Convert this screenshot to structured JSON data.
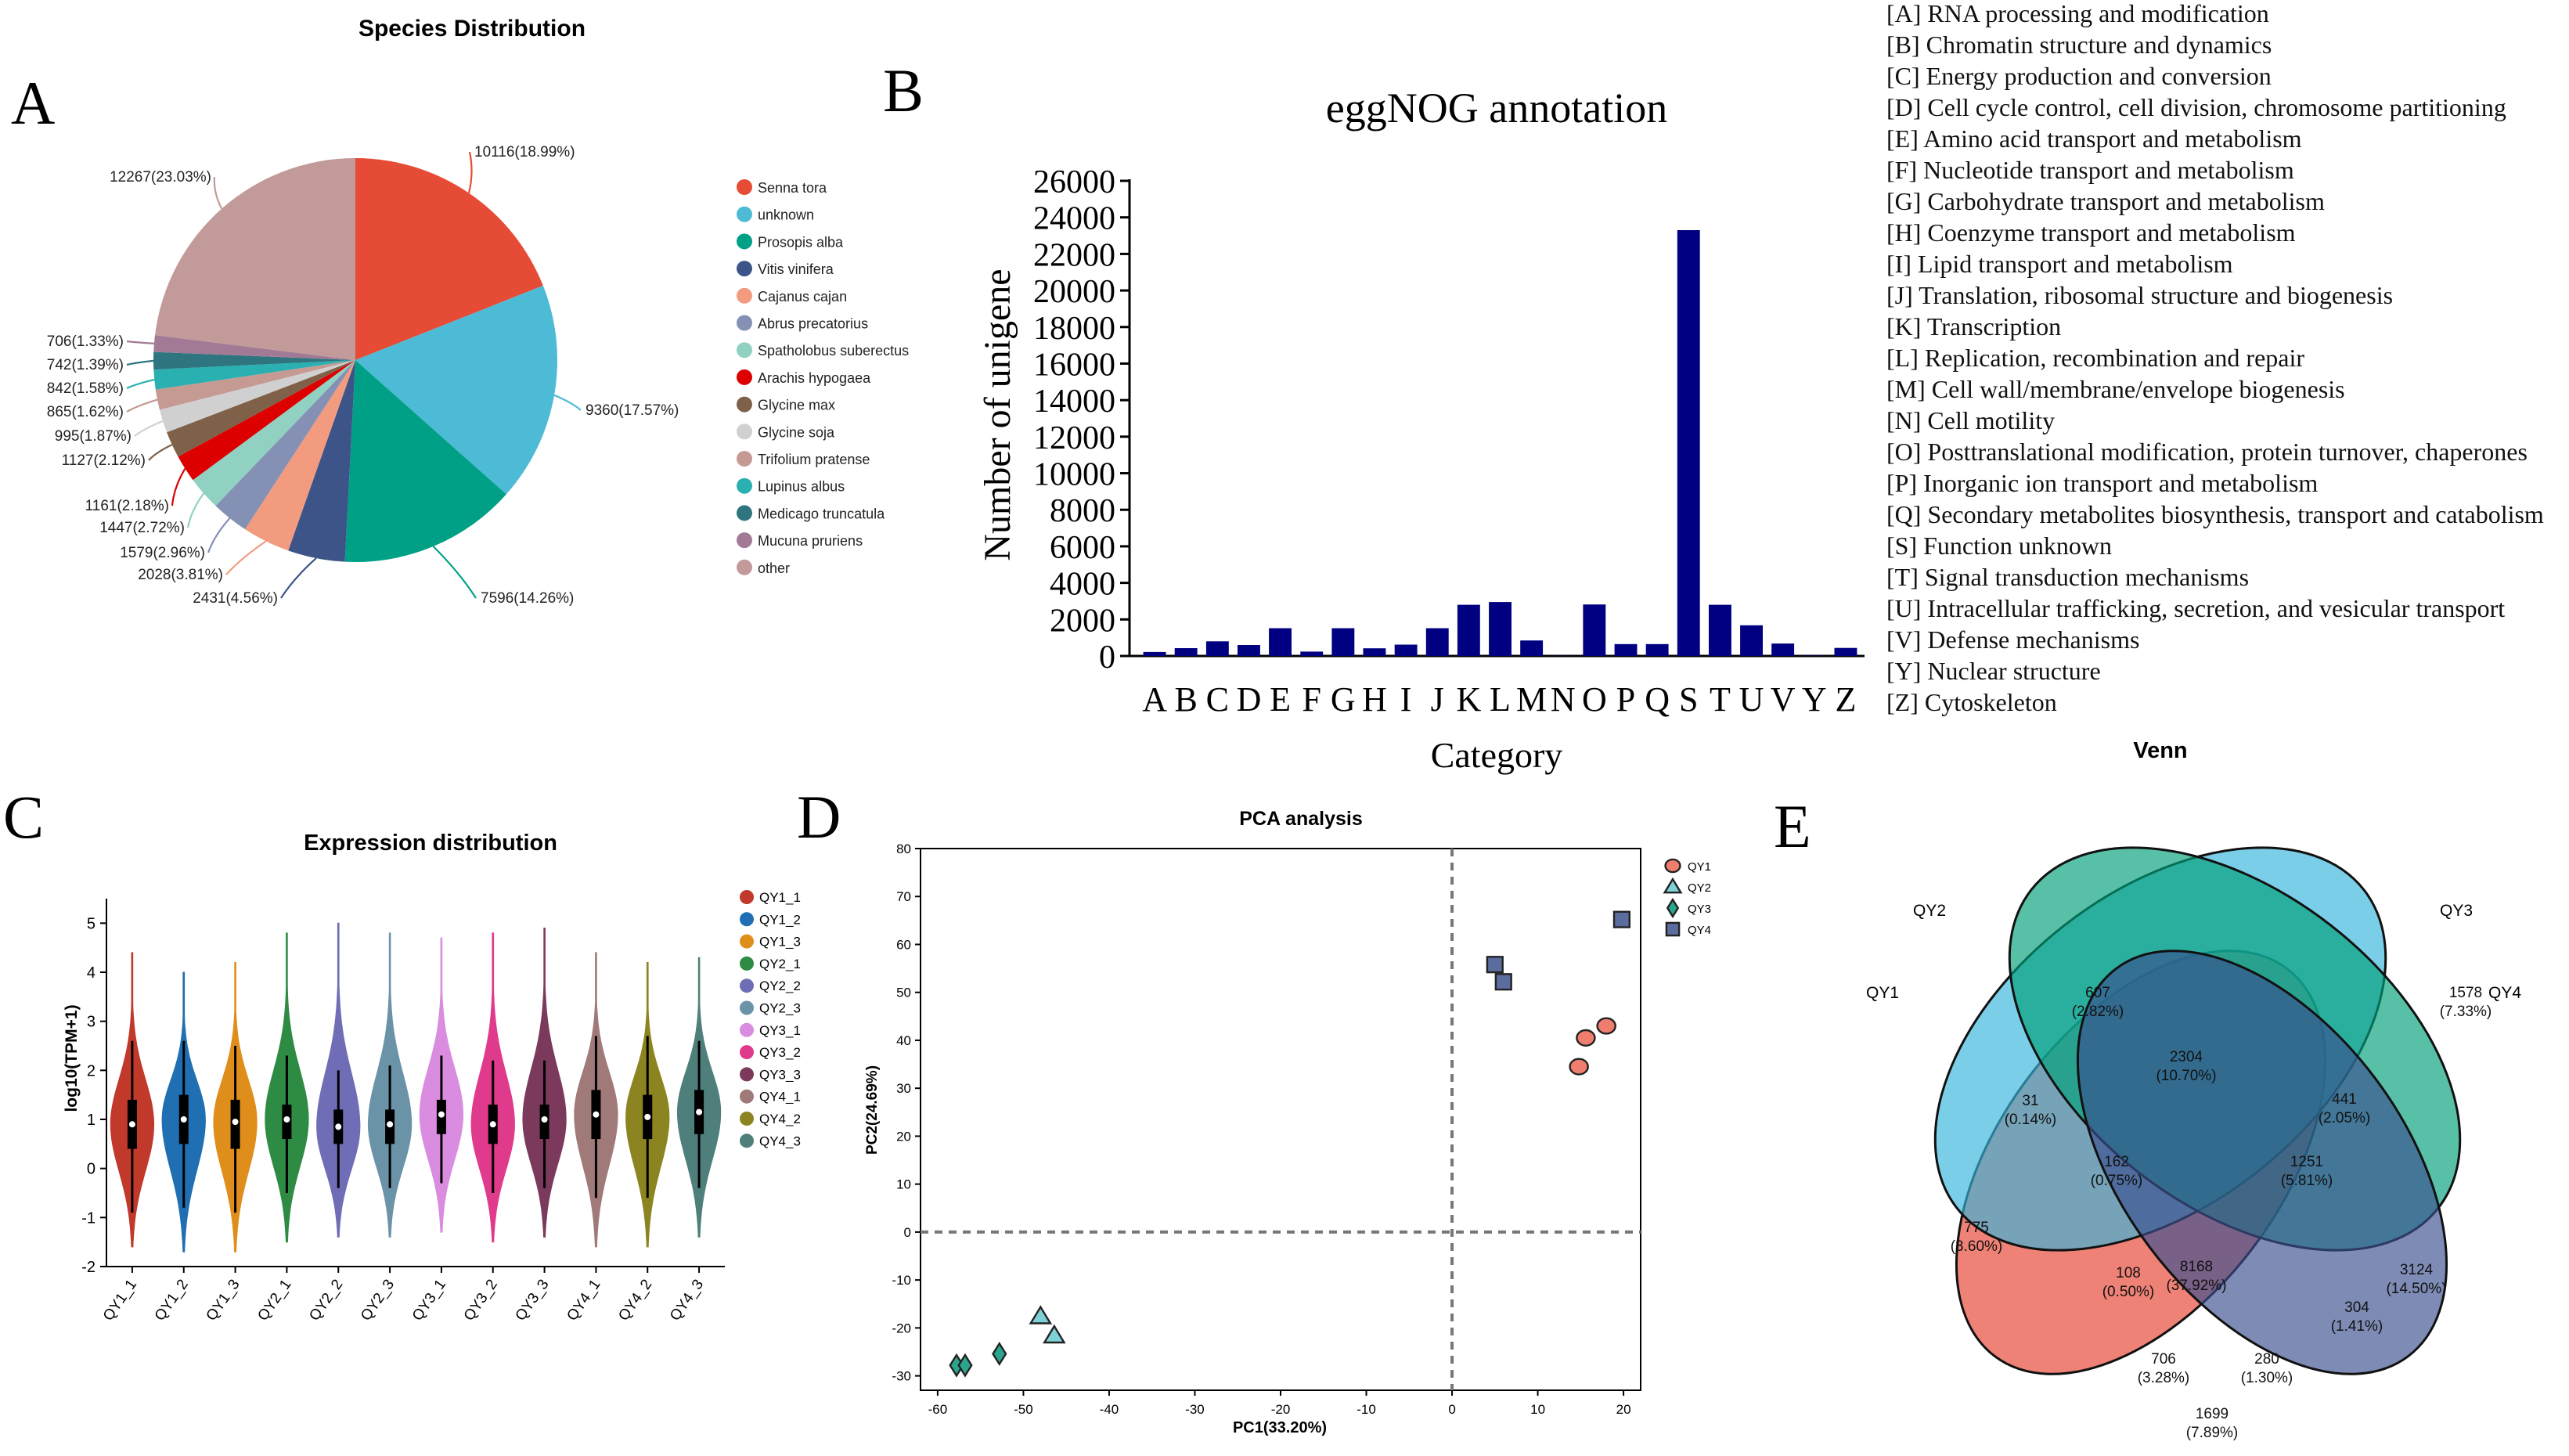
{
  "panels": {
    "A": {
      "letter": "A"
    },
    "B": {
      "letter": "B"
    },
    "C": {
      "letter": "C"
    },
    "D": {
      "letter": "D"
    },
    "E": {
      "letter": "E"
    }
  },
  "chart_data": [
    {
      "id": "pie",
      "type": "pie",
      "title": "Species Distribution",
      "slices": [
        {
          "label": "Senna tora",
          "value": 10116,
          "text": "10116(18.99%)",
          "color": "#E64B35"
        },
        {
          "label": "unknown",
          "value": 9360,
          "text": "9360(17.57%)",
          "color": "#4DBBD5"
        },
        {
          "label": "Prosopis alba",
          "value": 7596,
          "text": "7596(14.26%)",
          "color": "#00A087"
        },
        {
          "label": "Vitis vinifera",
          "value": 2431,
          "text": "2431(4.56%)",
          "color": "#3C5488"
        },
        {
          "label": "Cajanus cajan",
          "value": 2028,
          "text": "2028(3.81%)",
          "color": "#F39B7F"
        },
        {
          "label": "Abrus precatorius",
          "value": 1579,
          "text": "1579(2.96%)",
          "color": "#8491B4"
        },
        {
          "label": "Spatholobus suberectus",
          "value": 1447,
          "text": "1447(2.72%)",
          "color": "#91D1C2"
        },
        {
          "label": "Arachis hypogaea",
          "value": 1161,
          "text": "1161(2.18%)",
          "color": "#DC0000"
        },
        {
          "label": "Glycine max",
          "value": 1127,
          "text": "1127(2.12%)",
          "color": "#7E6148"
        },
        {
          "label": "Glycine soja",
          "value": 995,
          "text": "995(1.87%)",
          "color": "#D0D0D0"
        },
        {
          "label": "Trifolium pratense",
          "value": 865,
          "text": "865(1.62%)",
          "color": "#C49A92"
        },
        {
          "label": "Lupinus albus",
          "value": 842,
          "text": "842(1.58%)",
          "color": "#2AB0B0"
        },
        {
          "label": "Medicago truncatula",
          "value": 742,
          "text": "742(1.39%)",
          "color": "#2E7580"
        },
        {
          "label": "Mucuna pruriens",
          "value": 706,
          "text": "706(1.33%)",
          "color": "#A37A95"
        },
        {
          "label": "other",
          "value": 12267,
          "text": "12267(23.03%)",
          "color": "#C29A99"
        }
      ]
    },
    {
      "id": "eggnog",
      "type": "bar",
      "title": "eggNOG annotation",
      "xlabel": "Category",
      "ylabel": "Number of unigene",
      "ylim": [
        0,
        26000
      ],
      "yticks": [
        "0",
        "2000",
        "4000",
        "6000",
        "8000",
        "10000",
        "12000",
        "14000",
        "16000",
        "18000",
        "20000",
        "22000",
        "24000",
        "26000"
      ],
      "categories": [
        "A",
        "B",
        "C",
        "D",
        "E",
        "F",
        "G",
        "H",
        "I",
        "J",
        "K",
        "L",
        "M",
        "N",
        "O",
        "P",
        "Q",
        "S",
        "T",
        "U",
        "V",
        "Y",
        "Z"
      ],
      "values": [
        220,
        430,
        800,
        600,
        1520,
        240,
        1520,
        420,
        620,
        1520,
        2800,
        2950,
        850,
        10,
        2820,
        650,
        650,
        23300,
        2800,
        1680,
        680,
        15,
        440
      ],
      "color": "#000080",
      "legend": [
        "[A] RNA processing and modification",
        "[B] Chromatin structure and dynamics",
        "[C] Energy production and conversion",
        "[D] Cell cycle control, cell division, chromosome partitioning",
        "[E] Amino acid transport and metabolism",
        "[F] Nucleotide transport and metabolism",
        "[G] Carbohydrate transport and metabolism",
        "[H] Coenzyme transport and metabolism",
        "[I] Lipid transport and metabolism",
        "[J] Translation, ribosomal structure and biogenesis",
        "[K] Transcription",
        "[L] Replication, recombination and repair",
        "[M] Cell wall/membrane/envelope biogenesis",
        "[N] Cell motility",
        "[O] Posttranslational modification, protein turnover, chaperones",
        "[P] Inorganic ion transport and metabolism",
        "[Q] Secondary metabolites biosynthesis, transport and catabolism",
        "[S] Function unknown",
        "[T] Signal transduction mechanisms",
        "[U] Intracellular trafficking, secretion, and vesicular transport",
        "[V] Defense mechanisms",
        "[Y] Nuclear structure",
        "[Z] Cytoskeleton"
      ]
    },
    {
      "id": "violin",
      "type": "violin",
      "title": "Expression distribution",
      "ylabel": "log10(TPM+1)",
      "ylim": [
        -2,
        5.5
      ],
      "yticks": [
        "-2",
        "-1",
        "0",
        "1",
        "2",
        "3",
        "4",
        "5"
      ],
      "samples": [
        {
          "name": "QY1_1",
          "color": "#C0392B",
          "min": -1.6,
          "max": 4.4,
          "q1": 0.4,
          "median": 0.9,
          "q3": 1.4,
          "wlo": -0.9,
          "whi": 2.6
        },
        {
          "name": "QY1_2",
          "color": "#1F6FB2",
          "min": -1.7,
          "max": 4.0,
          "q1": 0.5,
          "median": 1.0,
          "q3": 1.5,
          "wlo": -0.8,
          "whi": 2.6
        },
        {
          "name": "QY1_3",
          "color": "#E08E1B",
          "min": -1.7,
          "max": 4.2,
          "q1": 0.4,
          "median": 0.95,
          "q3": 1.4,
          "wlo": -0.9,
          "whi": 2.5
        },
        {
          "name": "QY2_1",
          "color": "#2E8B44",
          "min": -1.5,
          "max": 4.8,
          "q1": 0.6,
          "median": 1.0,
          "q3": 1.3,
          "wlo": -0.5,
          "whi": 2.3
        },
        {
          "name": "QY2_2",
          "color": "#6E6DB5",
          "min": -1.4,
          "max": 5.0,
          "q1": 0.5,
          "median": 0.85,
          "q3": 1.2,
          "wlo": -0.4,
          "whi": 2.0
        },
        {
          "name": "QY2_3",
          "color": "#6B93A8",
          "min": -1.4,
          "max": 4.8,
          "q1": 0.5,
          "median": 0.9,
          "q3": 1.2,
          "wlo": -0.4,
          "whi": 2.1
        },
        {
          "name": "QY3_1",
          "color": "#D98CE0",
          "min": -1.3,
          "max": 4.7,
          "q1": 0.7,
          "median": 1.1,
          "q3": 1.4,
          "wlo": -0.3,
          "whi": 2.3
        },
        {
          "name": "QY3_2",
          "color": "#E03A8C",
          "min": -1.5,
          "max": 4.8,
          "q1": 0.5,
          "median": 0.9,
          "q3": 1.3,
          "wlo": -0.5,
          "whi": 2.2
        },
        {
          "name": "QY3_3",
          "color": "#7B3A5C",
          "min": -1.4,
          "max": 4.9,
          "q1": 0.6,
          "median": 1.0,
          "q3": 1.3,
          "wlo": -0.4,
          "whi": 2.2
        },
        {
          "name": "QY4_1",
          "color": "#A07A78",
          "min": -1.6,
          "max": 4.4,
          "q1": 0.6,
          "median": 1.1,
          "q3": 1.6,
          "wlo": -0.6,
          "whi": 2.7
        },
        {
          "name": "QY4_2",
          "color": "#8C8420",
          "min": -1.6,
          "max": 4.2,
          "q1": 0.6,
          "median": 1.05,
          "q3": 1.5,
          "wlo": -0.6,
          "whi": 2.7
        },
        {
          "name": "QY4_3",
          "color": "#4E7F7A",
          "min": -1.4,
          "max": 4.3,
          "q1": 0.7,
          "median": 1.15,
          "q3": 1.6,
          "wlo": -0.4,
          "whi": 2.6
        }
      ]
    },
    {
      "id": "pca",
      "type": "scatter",
      "title": "PCA analysis",
      "xlabel": "PC1(33.20%)",
      "ylabel": "PC2(24.69%)",
      "xlim": [
        -62,
        22
      ],
      "ylim": [
        -33,
        80
      ],
      "xticks": [
        "-60",
        "-50",
        "-40",
        "-30",
        "-20",
        "-10",
        "0",
        "10",
        "20"
      ],
      "yticks": [
        "-30",
        "-20",
        "-10",
        "0",
        "10",
        "20",
        "30",
        "40",
        "50",
        "60",
        "70",
        "80"
      ],
      "series": [
        {
          "name": "QY1",
          "shape": "circle",
          "color": "#F07E6E",
          "points": [
            [
              14.8,
              34.5
            ],
            [
              15.6,
              40.5
            ],
            [
              18.0,
              43.0
            ]
          ]
        },
        {
          "name": "QY2",
          "shape": "triangle",
          "color": "#7FD1D8",
          "points": [
            [
              -48.0,
              -17.6
            ],
            [
              -46.4,
              -21.6
            ]
          ]
        },
        {
          "name": "QY3",
          "shape": "diamond",
          "color": "#2CA58D",
          "points": [
            [
              -57.8,
              -27.8
            ],
            [
              -56.8,
              -27.8
            ],
            [
              -52.8,
              -25.4
            ]
          ]
        },
        {
          "name": "QY4",
          "shape": "square",
          "color": "#5B6C9E",
          "points": [
            [
              5.0,
              55.8
            ],
            [
              6.0,
              52.2
            ],
            [
              19.8,
              65.2
            ]
          ]
        }
      ]
    },
    {
      "id": "venn",
      "type": "venn",
      "title": "Venn",
      "sets": [
        {
          "name": "QY1",
          "color": "#E6412F"
        },
        {
          "name": "QY2",
          "color": "#36B5DB"
        },
        {
          "name": "QY3",
          "color": "#00A078"
        },
        {
          "name": "QY4",
          "color": "#3A4F8E"
        }
      ],
      "regions": [
        {
          "sets": [
            "QY1"
          ],
          "count": "775",
          "pct": "(3.60%)"
        },
        {
          "sets": [
            "QY2"
          ],
          "count": "607",
          "pct": "(2.82%)"
        },
        {
          "sets": [
            "QY3"
          ],
          "count": "1578",
          "pct": "(7.33%)"
        },
        {
          "sets": [
            "QY4"
          ],
          "count": "3124",
          "pct": "(14.50%)"
        },
        {
          "sets": [
            "QY1",
            "QY2"
          ],
          "count": "31",
          "pct": "(0.14%)"
        },
        {
          "sets": [
            "QY2",
            "QY3"
          ],
          "count": "2304",
          "pct": "(10.70%)"
        },
        {
          "sets": [
            "QY3",
            "QY4"
          ],
          "count": "441",
          "pct": "(2.05%)"
        },
        {
          "sets": [
            "QY1",
            "QY2",
            "QY3"
          ],
          "count": "162",
          "pct": "(0.75%)"
        },
        {
          "sets": [
            "QY2",
            "QY3",
            "QY4"
          ],
          "count": "1251",
          "pct": "(5.81%)"
        },
        {
          "sets": [
            "QY1",
            "QY2",
            "QY3",
            "QY4"
          ],
          "count": "8168",
          "pct": "(37.92%)"
        },
        {
          "sets": [
            "QY1",
            "QY3"
          ],
          "count": "108",
          "pct": "(0.50%)"
        },
        {
          "sets": [
            "QY2",
            "QY4"
          ],
          "count": "304",
          "pct": "(1.41%)"
        },
        {
          "sets": [
            "QY1",
            "QY3",
            "QY4"
          ],
          "count": "706",
          "pct": "(3.28%)"
        },
        {
          "sets": [
            "QY1",
            "QY2",
            "QY4"
          ],
          "count": "280",
          "pct": "(1.30%)"
        },
        {
          "sets": [
            "QY1",
            "QY4"
          ],
          "count": "1699",
          "pct": "(7.89%)"
        }
      ]
    }
  ]
}
